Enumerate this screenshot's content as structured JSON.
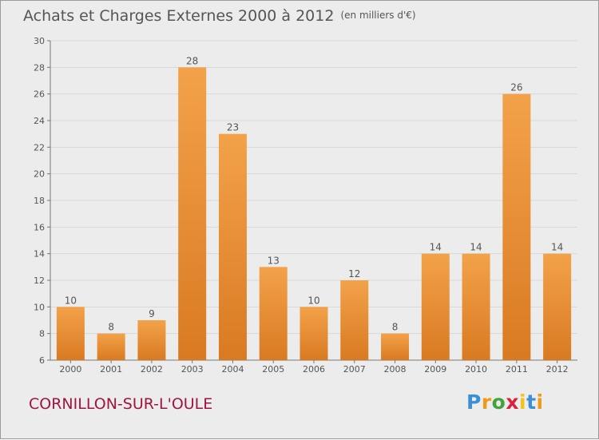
{
  "header": {
    "title": "Achats et Charges Externes 2000 à 2012",
    "unit": "(en milliers d'€)"
  },
  "footer": {
    "city": "CORNILLON-SUR-L'OULE",
    "logo_letters": [
      "P",
      "r",
      "o",
      "x",
      "i",
      "t",
      "i"
    ],
    "logo_colors": [
      "#3a8fd6",
      "#f09a1a",
      "#43a33a",
      "#d8243b",
      "#f0c419",
      "#3a8fd6",
      "#f09a1a"
    ]
  },
  "colors": {
    "bar": "#f3a24a",
    "bar_dark": "#d97a22",
    "background": "#ececec",
    "grid": "#d8d8d8",
    "text": "#555555"
  },
  "chart_data": {
    "type": "bar",
    "title": "Achats et Charges Externes 2000 à 2012",
    "subtitle": "(en milliers d'€)",
    "categories": [
      "2000",
      "2001",
      "2002",
      "2003",
      "2004",
      "2005",
      "2006",
      "2007",
      "2008",
      "2009",
      "2010",
      "2011",
      "2012"
    ],
    "values": [
      10,
      8,
      9,
      28,
      23,
      13,
      10,
      12,
      8,
      14,
      14,
      26,
      14
    ],
    "ylim": [
      6,
      30
    ],
    "yticks": [
      6,
      8,
      10,
      12,
      14,
      16,
      18,
      20,
      22,
      24,
      26,
      28,
      30
    ],
    "grid": true,
    "data_labels": true
  }
}
